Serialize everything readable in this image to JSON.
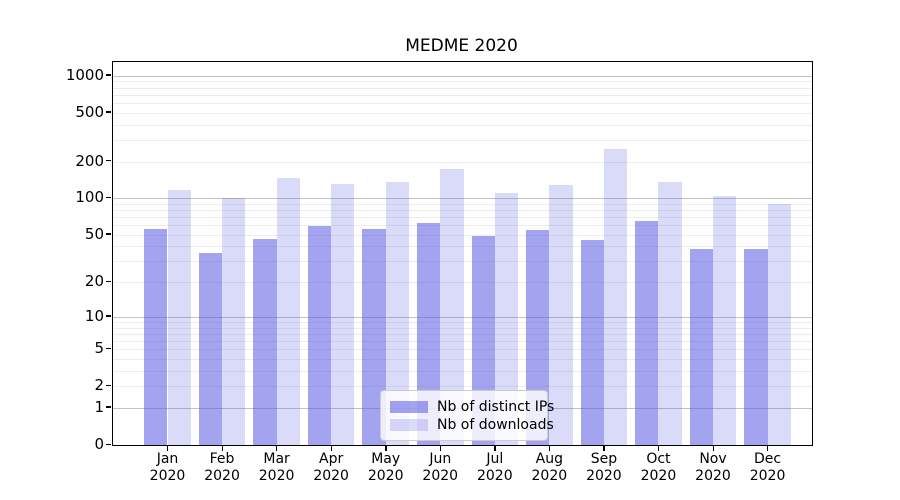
{
  "chart_data": {
    "type": "bar",
    "title": "MEDME 2020",
    "months": [
      "Jan",
      "Feb",
      "Mar",
      "Apr",
      "May",
      "Jun",
      "Jul",
      "Aug",
      "Sep",
      "Oct",
      "Nov",
      "Dec"
    ],
    "year": "2020",
    "series": [
      {
        "name": "Nb of distinct IPs",
        "color": "rgba(87,87,228,0.55)",
        "values": [
          56,
          35,
          46,
          59,
          56,
          63,
          49,
          55,
          45,
          65,
          38,
          38
        ]
      },
      {
        "name": "Nb of downloads",
        "color": "rgba(87,87,228,0.22)",
        "values": [
          118,
          101,
          148,
          131,
          137,
          175,
          110,
          128,
          255,
          137,
          105,
          90
        ]
      }
    ],
    "y_ticks": [
      0,
      1,
      2,
      5,
      10,
      20,
      50,
      100,
      200,
      500,
      1000
    ],
    "y_scale": "symlog",
    "ylim": [
      0,
      1292
    ],
    "xlabel": "",
    "ylabel": "",
    "grid": "horizontal, major at powers of 10, faint minors at 2-9 multiples",
    "legend_position": "lower center inside plot",
    "colors": {
      "grid_major": "#c2c2c2",
      "grid_minor": "#ececec",
      "axis": "#000000",
      "background": "#ffffff"
    }
  }
}
